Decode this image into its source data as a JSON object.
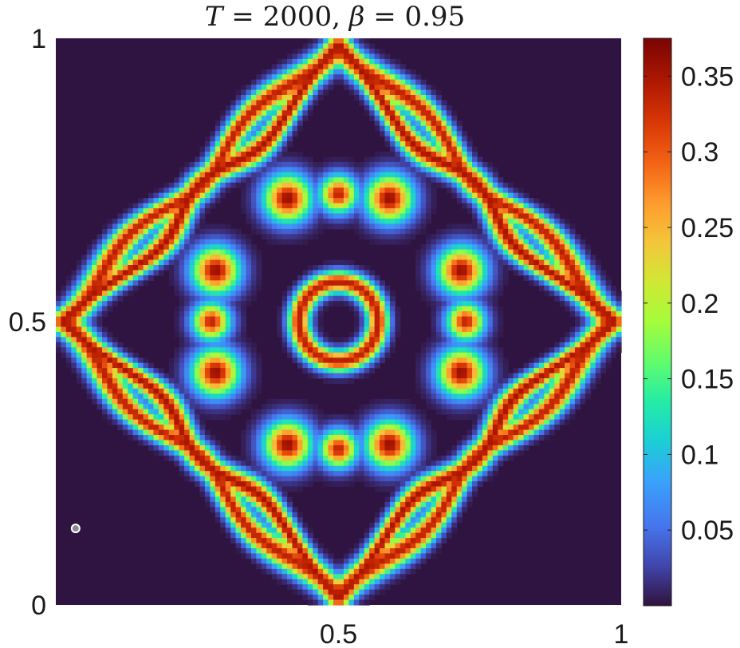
{
  "chart_data": {
    "type": "heatmap",
    "title": {
      "parts": [
        {
          "text": "T",
          "italic": true
        },
        {
          "text": " = 2000,  ",
          "italic": false
        },
        {
          "text": "β",
          "italic": true
        },
        {
          "text": " = 0.95",
          "italic": false
        }
      ]
    },
    "xlabel": "",
    "ylabel": "",
    "xlim": [
      0,
      1
    ],
    "ylim": [
      0,
      1
    ],
    "x_ticks": [
      {
        "value": 0.5,
        "label": "0.5"
      },
      {
        "value": 1,
        "label": "1"
      }
    ],
    "y_ticks": [
      {
        "value": 0,
        "label": "0"
      },
      {
        "value": 0.5,
        "label": "0.5"
      },
      {
        "value": 1,
        "label": "1"
      }
    ],
    "colorbar": {
      "colormap": "turbo",
      "clim": [
        0,
        0.375
      ],
      "ticks": [
        {
          "value": 0.05,
          "label": "0.05"
        },
        {
          "value": 0.1,
          "label": "0.1"
        },
        {
          "value": 0.15,
          "label": "0.15"
        },
        {
          "value": 0.2,
          "label": "0.2"
        },
        {
          "value": 0.25,
          "label": "0.25"
        },
        {
          "value": 0.3,
          "label": "0.3"
        },
        {
          "value": 0.35,
          "label": "0.35"
        }
      ]
    },
    "field": {
      "description_values": "concentric rings centered at (0.5, 0.5) with 8-fold modulated outer rings",
      "center": [
        0.5,
        0.5
      ],
      "peak_value": 0.37,
      "background_value": 0,
      "inner_ring": {
        "radius": 0.07,
        "value": 0.34
      },
      "outer_blobs": {
        "radius": 0.235,
        "count": 8,
        "value": 0.36
      },
      "diamond_rings": [
        {
          "radius": 0.33,
          "value": 0.35
        },
        {
          "radius": 0.355,
          "value": 0.34
        }
      ]
    },
    "marker": {
      "x": 0.035,
      "y": 0.135,
      "fill": "#8a8a8a",
      "stroke": "#ffffff"
    },
    "grid": false
  },
  "colors": {
    "background_plot": "#2f1340",
    "axis": "#1a1a1a"
  }
}
